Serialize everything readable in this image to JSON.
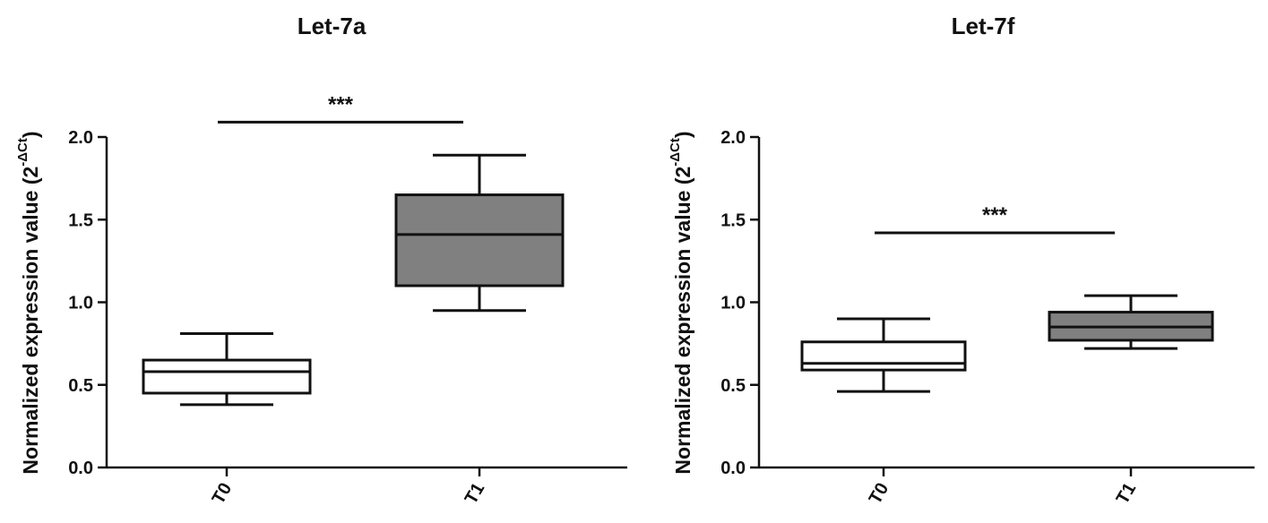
{
  "chart_data": [
    {
      "type": "box",
      "title": "Let-7a",
      "ylabel": "Normalized expression value (2",
      "ylabel_sup": "-ΔCt",
      "ylabel_close": ")",
      "ylim": [
        0,
        2.0
      ],
      "yticks": [
        "0.0",
        "0.5",
        "1.0",
        "1.5",
        "2.0"
      ],
      "ytick_values": [
        0,
        0.5,
        1.0,
        1.5,
        2.0
      ],
      "categories": [
        "T0",
        "T1"
      ],
      "boxes": [
        {
          "category": "T0",
          "min": 0.38,
          "q1": 0.45,
          "median": 0.58,
          "q3": 0.65,
          "max": 0.81,
          "fill": "#ffffff"
        },
        {
          "category": "T1",
          "min": 0.95,
          "q1": 1.1,
          "median": 1.41,
          "q3": 1.65,
          "max": 1.89,
          "fill": "#808080"
        }
      ],
      "significance": {
        "label": "***",
        "y": 2.09
      }
    },
    {
      "type": "box",
      "title": "Let-7f",
      "ylabel": "Normalized expression value (2",
      "ylabel_sup": "-ΔCt",
      "ylabel_close": ")",
      "ylim": [
        0,
        2.0
      ],
      "yticks": [
        "0.0",
        "0.5",
        "1.0",
        "1.5",
        "2.0"
      ],
      "ytick_values": [
        0,
        0.5,
        1.0,
        1.5,
        2.0
      ],
      "categories": [
        "T0",
        "T1"
      ],
      "boxes": [
        {
          "category": "T0",
          "min": 0.46,
          "q1": 0.59,
          "median": 0.63,
          "q3": 0.76,
          "max": 0.9,
          "fill": "#ffffff"
        },
        {
          "category": "T1",
          "min": 0.72,
          "q1": 0.77,
          "median": 0.85,
          "q3": 0.94,
          "max": 1.04,
          "fill": "#808080"
        }
      ],
      "significance": {
        "label": "***",
        "y": 1.42
      }
    }
  ]
}
